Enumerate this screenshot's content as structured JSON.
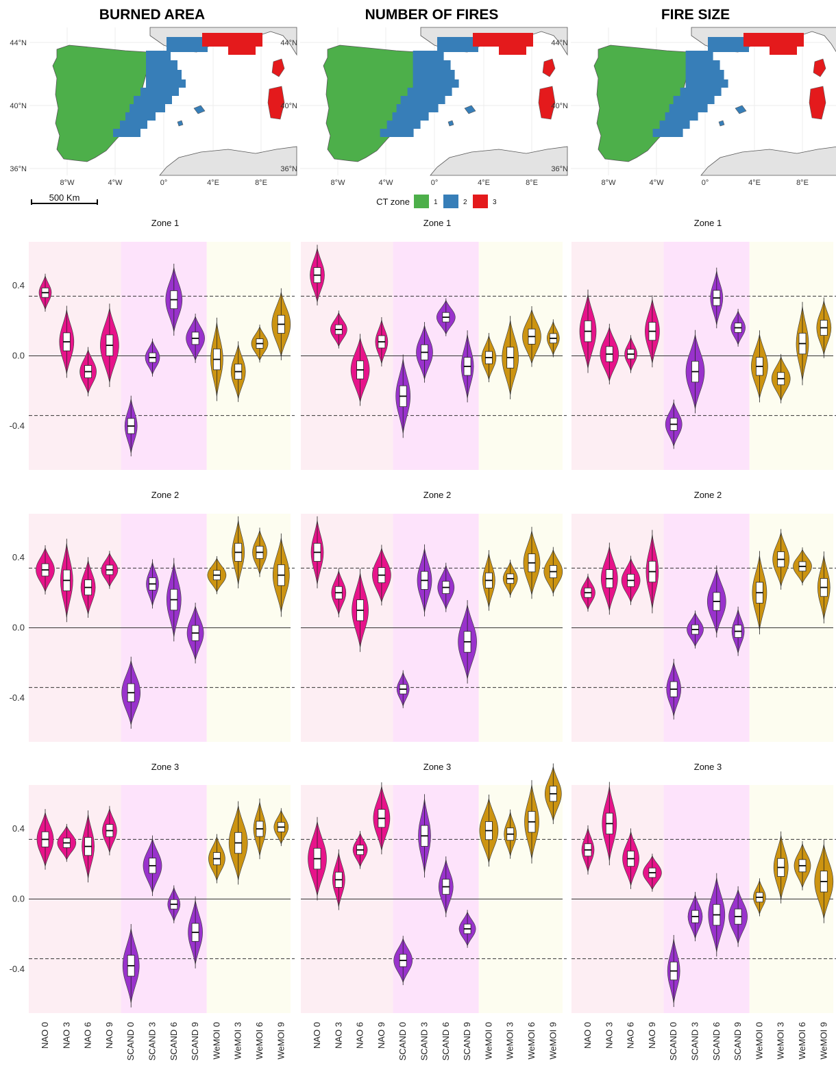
{
  "columns": [
    "BURNED AREA",
    "NUMBER OF FIRES",
    "FIRE SIZE"
  ],
  "map_axes": {
    "lat_labels": [
      "44°N",
      "40°N",
      "36°N"
    ],
    "lon_labels": [
      "8°W",
      "4°W",
      "0°",
      "4°E",
      "8°E"
    ]
  },
  "scalebar_label": "500 Km",
  "legend": {
    "title": "CT zone",
    "items": [
      {
        "label": "1",
        "color": "#4daf4a"
      },
      {
        "label": "2",
        "color": "#377eb8"
      },
      {
        "label": "3",
        "color": "#e41a1c"
      }
    ]
  },
  "colors": {
    "NAO": "#e7138a",
    "SCAND": "#9932cc",
    "WeMOI": "#cc9411",
    "NAO_bg": "#fdeef3",
    "SCAND_bg": "#fde3fb",
    "WeMOI_bg": "#fdfdf0"
  },
  "chart_data": {
    "type": "violin",
    "categories": [
      "NAO 0",
      "NAO 3",
      "NAO 6",
      "NAO 9",
      "SCAND 0",
      "SCAND 3",
      "SCAND 6",
      "SCAND 9",
      "WeMOI 0",
      "WeMOI 3",
      "WeMOI 6",
      "WeMOI 9"
    ],
    "y_ticks": [
      0.4,
      0.0,
      -0.4
    ],
    "y_tick_labels": [
      "0.4",
      "0.0",
      "-0.4"
    ],
    "ylim": [
      -0.65,
      0.65
    ],
    "threshold_lines": [
      0.34,
      -0.34
    ],
    "panels": [
      {
        "column": "BURNED AREA",
        "title": "Zone 1",
        "medians": [
          0.36,
          0.08,
          -0.09,
          0.06,
          -0.4,
          -0.01,
          0.32,
          0.1,
          -0.02,
          -0.09,
          0.07,
          0.18
        ]
      },
      {
        "column": "NUMBER OF FIRES",
        "title": "Zone 1",
        "medians": [
          0.46,
          0.15,
          -0.08,
          0.08,
          -0.23,
          0.02,
          0.22,
          -0.06,
          -0.01,
          -0.01,
          0.11,
          0.1
        ]
      },
      {
        "column": "FIRE SIZE",
        "title": "Zone 1",
        "medians": [
          0.14,
          0.01,
          0.01,
          0.14,
          -0.39,
          -0.09,
          0.33,
          0.16,
          -0.06,
          -0.13,
          0.07,
          0.16
        ]
      },
      {
        "column": "BURNED AREA",
        "title": "Zone 2",
        "medians": [
          0.33,
          0.27,
          0.23,
          0.33,
          -0.37,
          0.25,
          0.16,
          -0.03,
          0.3,
          0.43,
          0.43,
          0.3
        ]
      },
      {
        "column": "NUMBER OF FIRES",
        "title": "Zone 2",
        "medians": [
          0.43,
          0.2,
          0.1,
          0.3,
          -0.35,
          0.27,
          0.23,
          -0.08,
          0.27,
          0.28,
          0.37,
          0.32
        ]
      },
      {
        "column": "FIRE SIZE",
        "title": "Zone 2",
        "medians": [
          0.2,
          0.28,
          0.27,
          0.32,
          -0.35,
          -0.01,
          0.15,
          -0.02,
          0.2,
          0.39,
          0.35,
          0.23
        ]
      },
      {
        "column": "BURNED AREA",
        "title": "Zone 3",
        "medians": [
          0.34,
          0.32,
          0.3,
          0.39,
          -0.38,
          0.19,
          -0.03,
          -0.19,
          0.23,
          0.32,
          0.4,
          0.41
        ]
      },
      {
        "column": "NUMBER OF FIRES",
        "title": "Zone 3",
        "medians": [
          0.23,
          0.11,
          0.28,
          0.46,
          -0.35,
          0.36,
          0.07,
          -0.17,
          0.39,
          0.37,
          0.44,
          0.6
        ]
      },
      {
        "column": "FIRE SIZE",
        "title": "Zone 3",
        "medians": [
          0.28,
          0.43,
          0.23,
          0.15,
          -0.41,
          -0.1,
          -0.09,
          -0.1,
          0.01,
          0.18,
          0.19,
          0.1
        ]
      }
    ]
  }
}
